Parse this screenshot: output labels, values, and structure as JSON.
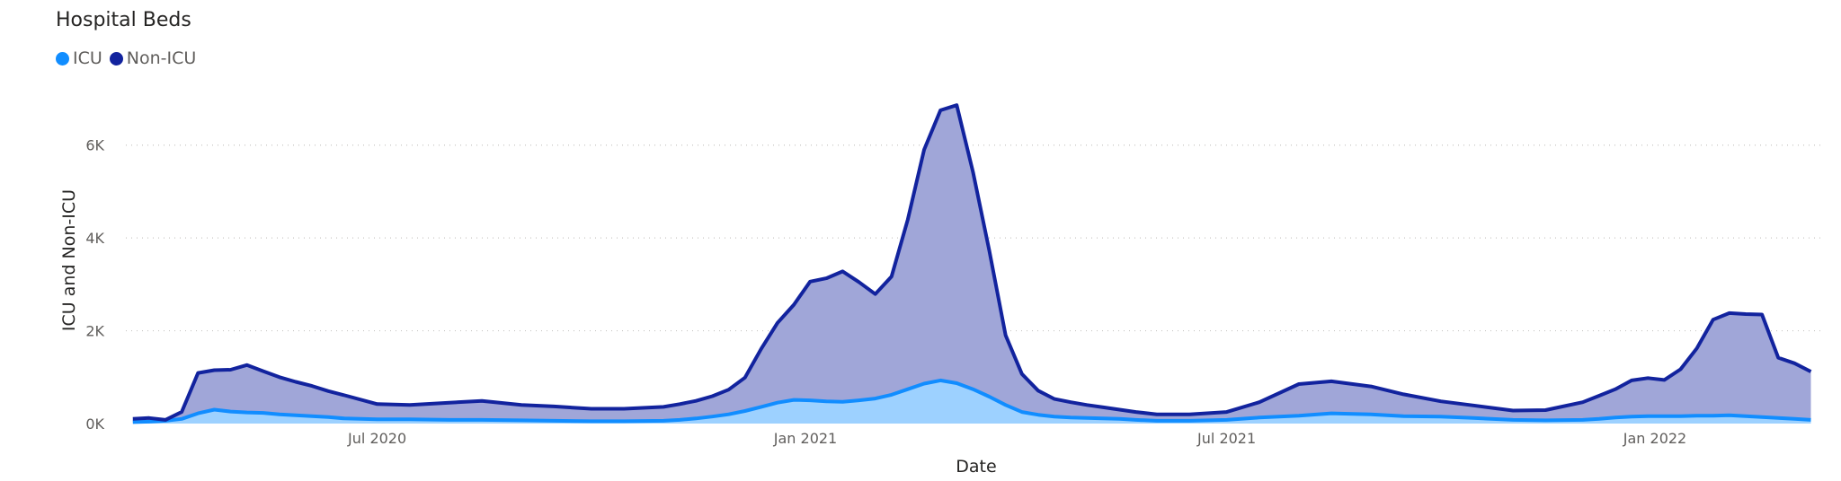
{
  "chart_data": {
    "type": "area",
    "title": "Hospital Beds",
    "xlabel": "Date",
    "ylabel": "ICU and Non-ICU",
    "ylim": [
      0,
      7000
    ],
    "yticks": [
      {
        "value": 0,
        "label": "0K"
      },
      {
        "value": 2000,
        "label": "2K"
      },
      {
        "value": 4000,
        "label": "4K"
      },
      {
        "value": 6000,
        "label": "6K"
      }
    ],
    "xticks": [
      {
        "value": "2020-07-01",
        "label": "Jul 2020"
      },
      {
        "value": "2021-01-01",
        "label": "Jan 2021"
      },
      {
        "value": "2021-07-01",
        "label": "Jul 2021"
      },
      {
        "value": "2022-01-01",
        "label": "Jan 2022"
      }
    ],
    "xlim": [
      "2020-03-15",
      "2022-03-15"
    ],
    "grid": true,
    "stacked": true,
    "legend_position": "top-left",
    "x": [
      "2020-03-18",
      "2020-03-25",
      "2020-04-01",
      "2020-04-08",
      "2020-04-15",
      "2020-04-22",
      "2020-04-29",
      "2020-05-06",
      "2020-05-13",
      "2020-05-20",
      "2020-05-27",
      "2020-06-03",
      "2020-06-10",
      "2020-06-17",
      "2020-07-01",
      "2020-07-15",
      "2020-08-01",
      "2020-08-15",
      "2020-09-01",
      "2020-09-15",
      "2020-10-01",
      "2020-10-15",
      "2020-11-01",
      "2020-11-08",
      "2020-11-15",
      "2020-11-22",
      "2020-11-29",
      "2020-12-06",
      "2020-12-13",
      "2020-12-20",
      "2020-12-27",
      "2021-01-03",
      "2021-01-10",
      "2021-01-17",
      "2021-01-24",
      "2021-01-31",
      "2021-02-07",
      "2021-02-14",
      "2021-02-21",
      "2021-02-28",
      "2021-03-07",
      "2021-03-14",
      "2021-03-21",
      "2021-03-28",
      "2021-04-04",
      "2021-04-11",
      "2021-04-18",
      "2021-04-25",
      "2021-05-02",
      "2021-05-09",
      "2021-05-16",
      "2021-05-23",
      "2021-06-01",
      "2021-06-15",
      "2021-07-01",
      "2021-07-15",
      "2021-08-01",
      "2021-08-15",
      "2021-09-01",
      "2021-09-15",
      "2021-10-01",
      "2021-10-15",
      "2021-11-01",
      "2021-11-15",
      "2021-12-01",
      "2021-12-08",
      "2021-12-15",
      "2021-12-22",
      "2021-12-29",
      "2022-01-05",
      "2022-01-12",
      "2022-01-19",
      "2022-01-26",
      "2022-02-02",
      "2022-02-09",
      "2022-02-16",
      "2022-02-23",
      "2022-03-02",
      "2022-03-09"
    ],
    "series": [
      {
        "name": "ICU",
        "color": "#118dff",
        "fill": "#9dd1ff",
        "values": [
          30,
          40,
          60,
          100,
          220,
          300,
          260,
          240,
          230,
          200,
          180,
          160,
          140,
          110,
          90,
          90,
          80,
          80,
          70,
          60,
          50,
          50,
          60,
          80,
          110,
          150,
          200,
          270,
          360,
          450,
          510,
          500,
          480,
          470,
          500,
          540,
          620,
          740,
          860,
          930,
          870,
          740,
          580,
          400,
          250,
          190,
          150,
          130,
          120,
          110,
          100,
          80,
          60,
          60,
          80,
          130,
          170,
          220,
          200,
          160,
          150,
          120,
          80,
          70,
          80,
          100,
          130,
          150,
          160,
          160,
          160,
          170,
          170,
          180,
          160,
          140,
          120,
          100,
          80
        ]
      },
      {
        "name": "Non-ICU",
        "color": "#12239e",
        "fill": "#a0a6d8",
        "values": [
          70,
          80,
          20,
          150,
          870,
          850,
          900,
          1020,
          900,
          800,
          720,
          650,
          560,
          500,
          330,
          310,
          370,
          410,
          330,
          310,
          270,
          270,
          300,
          340,
          380,
          440,
          530,
          720,
          1250,
          1720,
          2050,
          2560,
          2650,
          2810,
          2550,
          2250,
          2550,
          3660,
          5040,
          5820,
          5990,
          4680,
          3150,
          1500,
          820,
          520,
          380,
          330,
          280,
          240,
          200,
          170,
          140,
          140,
          170,
          330,
          680,
          690,
          600,
          470,
          330,
          270,
          200,
          220,
          380,
          500,
          610,
          780,
          820,
          780,
          1010,
          1450,
          2070,
          2200,
          2200,
          2210,
          1300,
          1200,
          1040
        ]
      }
    ]
  }
}
